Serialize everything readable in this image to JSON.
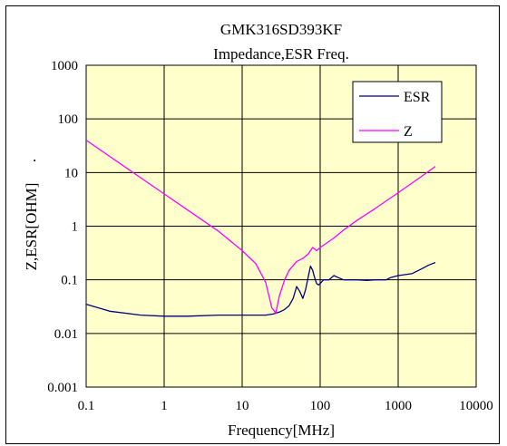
{
  "chart_data": {
    "type": "line",
    "title": "GMK316SD393KF",
    "subtitle": "Impedance,ESR Freq.",
    "xlabel": "Frequency[MHz]",
    "ylabel": "Z,ESR[OHM]",
    "ylabel_suffix": ".",
    "x_scale": "log",
    "y_scale": "log",
    "xlim": [
      0.1,
      10000
    ],
    "ylim": [
      0.001,
      1000
    ],
    "x_ticks": [
      "0.1",
      "1",
      "10",
      "100",
      "1000",
      "10000"
    ],
    "y_ticks": [
      "0.001",
      "0.01",
      "0.1",
      "1",
      "10",
      "100",
      "1000"
    ],
    "grid": true,
    "legend_position": "top-right",
    "plot_background": "#ffffcc",
    "series": [
      {
        "name": "ESR",
        "color": "#000080",
        "x": [
          0.1,
          0.2,
          0.5,
          1,
          2,
          5,
          10,
          20,
          25,
          30,
          35,
          40,
          45,
          50,
          55,
          60,
          65,
          70,
          75,
          80,
          85,
          90,
          95,
          100,
          110,
          130,
          150,
          170,
          200,
          250,
          300,
          400,
          500,
          600,
          700,
          800,
          1000,
          1500,
          2000,
          2500,
          3000
        ],
        "values": [
          0.035,
          0.026,
          0.022,
          0.021,
          0.021,
          0.022,
          0.022,
          0.022,
          0.023,
          0.025,
          0.028,
          0.033,
          0.045,
          0.075,
          0.06,
          0.045,
          0.065,
          0.11,
          0.18,
          0.15,
          0.11,
          0.085,
          0.08,
          0.085,
          0.1,
          0.1,
          0.12,
          0.11,
          0.1,
          0.1,
          0.1,
          0.097,
          0.1,
          0.1,
          0.1,
          0.11,
          0.12,
          0.13,
          0.16,
          0.19,
          0.21
        ]
      },
      {
        "name": "Z",
        "color": "#ff00ff",
        "x": [
          0.1,
          0.2,
          0.5,
          1,
          2,
          5,
          10,
          15,
          20,
          24,
          27,
          30,
          35,
          40,
          50,
          60,
          70,
          80,
          90,
          100,
          150,
          200,
          300,
          500,
          1000,
          2000,
          3000
        ],
        "values": [
          40,
          20,
          8,
          4,
          2,
          0.8,
          0.35,
          0.2,
          0.09,
          0.03,
          0.024,
          0.05,
          0.1,
          0.15,
          0.22,
          0.25,
          0.3,
          0.4,
          0.35,
          0.4,
          0.6,
          0.85,
          1.3,
          2.1,
          4.2,
          8.5,
          13
        ]
      }
    ]
  }
}
